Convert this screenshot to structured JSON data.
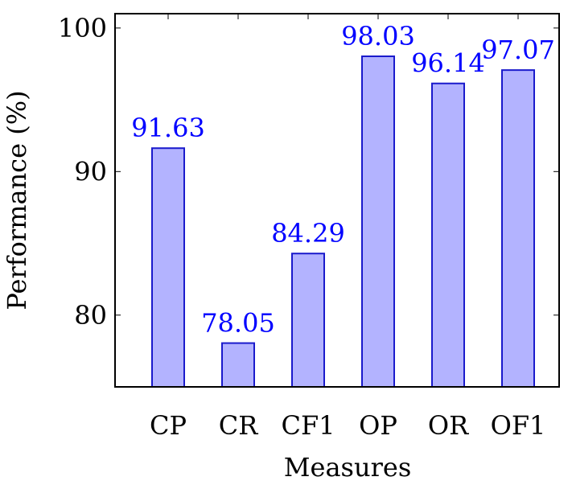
{
  "chart_data": {
    "type": "bar",
    "categories": [
      "CP",
      "CR",
      "CF1",
      "OP",
      "OR",
      "OF1"
    ],
    "values": [
      91.63,
      78.05,
      84.29,
      98.03,
      96.14,
      97.07
    ],
    "value_labels": [
      "91.63",
      "78.05",
      "84.29",
      "98.03",
      "96.14",
      "97.07"
    ],
    "xlabel": "Measures",
    "ylabel": "Performance (%)",
    "ylim": [
      75,
      101
    ],
    "yticks": [
      80,
      90,
      100
    ],
    "ytick_labels": [
      "80",
      "90",
      "100"
    ],
    "grid": false,
    "colors": {
      "bar_fill": "#b3b3ff",
      "bar_stroke": "#1a1acc",
      "label": "#0000ff",
      "axis": "#000000"
    }
  }
}
